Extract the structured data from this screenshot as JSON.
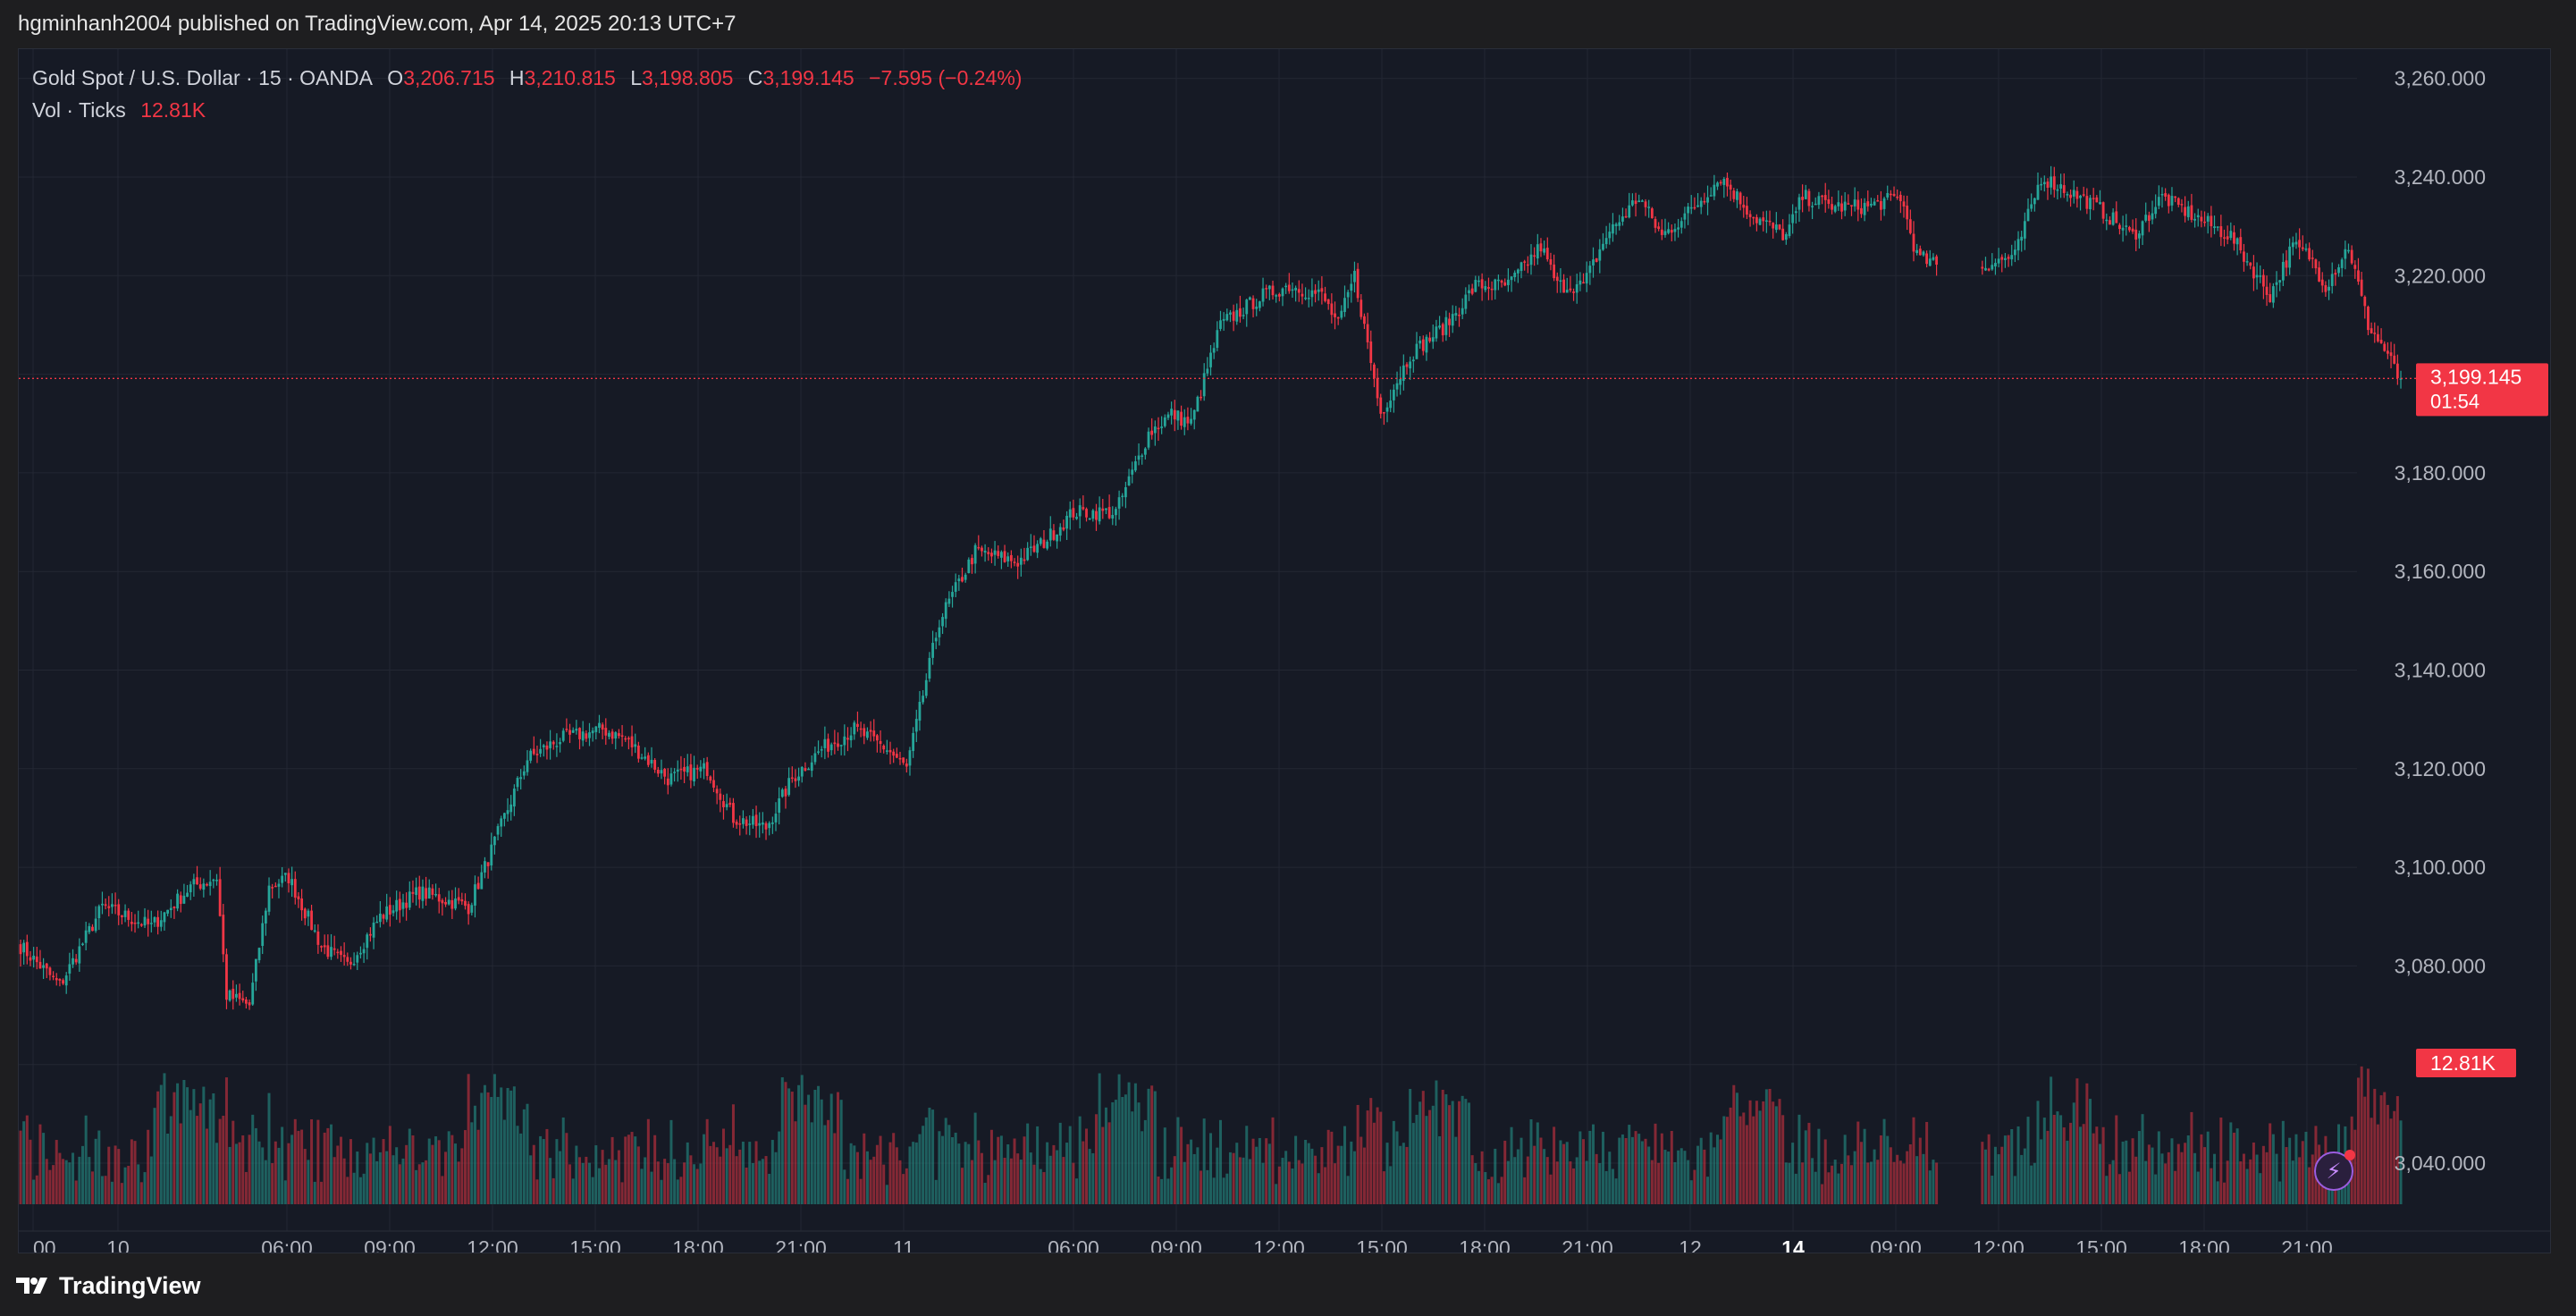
{
  "publisher_line": "hgminhanh2004 published on TradingView.com, Apr 14, 2025 20:13 UTC+7",
  "legend": {
    "symbol": "Gold Spot / U.S. Dollar · 15 · OANDA",
    "open_label": "O",
    "open": "3,206.715",
    "high_label": "H",
    "high": "3,210.815",
    "low_label": "L",
    "low": "3,198.805",
    "close_label": "C",
    "close": "3,199.145",
    "change": "−7.595 (−0.24%)",
    "vol_label": "Vol · Ticks",
    "vol_value": "12.81K"
  },
  "footer": {
    "brand": "TradingView"
  },
  "icons": [
    "tradingview-logo-icon",
    "lightning-icon"
  ],
  "colors": {
    "up": "#26a69a",
    "down": "#f23645",
    "background": "#161a25",
    "grid": "#232733"
  },
  "chart_data": {
    "type": "candlestick",
    "symbol": "Gold Spot / U.S. Dollar",
    "interval": "15",
    "price_axis_labels": [
      "3,260.000",
      "3,240.000",
      "3,220.000",
      "3,180.000",
      "3,160.000",
      "3,140.000",
      "3,120.000",
      "3,100.000",
      "3,080.000",
      "3,040.000"
    ],
    "ylim": [
      3031,
      3265
    ],
    "time_axis_labels": [
      "00",
      "10",
      "06:00",
      "09:00",
      "12:00",
      "15:00",
      "18:00",
      "21:00",
      "11",
      "06:00",
      "09:00",
      "12:00",
      "15:00",
      "18:00",
      "21:00",
      "12",
      "14",
      "09:00",
      "12:00",
      "15:00",
      "18:00",
      "21:00"
    ],
    "last_price": "3,199.145",
    "last_price_value": 3199.145,
    "countdown": "01:54",
    "volume_last_label": "12.81K",
    "waypoints": [
      [
        0,
        3084
      ],
      [
        12,
        3076
      ],
      [
        25,
        3092
      ],
      [
        40,
        3088
      ],
      [
        52,
        3096
      ],
      [
        60,
        3098
      ],
      [
        63,
        3074
      ],
      [
        70,
        3072
      ],
      [
        76,
        3096
      ],
      [
        82,
        3098
      ],
      [
        92,
        3084
      ],
      [
        100,
        3080
      ],
      [
        110,
        3090
      ],
      [
        122,
        3095
      ],
      [
        137,
        3092
      ],
      [
        142,
        3100
      ],
      [
        155,
        3122
      ],
      [
        165,
        3126
      ],
      [
        178,
        3128
      ],
      [
        185,
        3126
      ],
      [
        198,
        3118
      ],
      [
        210,
        3120
      ],
      [
        218,
        3110
      ],
      [
        228,
        3108
      ],
      [
        236,
        3118
      ],
      [
        245,
        3124
      ],
      [
        255,
        3128
      ],
      [
        265,
        3124
      ],
      [
        271,
        3120
      ],
      [
        281,
        3150
      ],
      [
        292,
        3164
      ],
      [
        305,
        3162
      ],
      [
        313,
        3166
      ],
      [
        322,
        3172
      ],
      [
        335,
        3172
      ],
      [
        345,
        3188
      ],
      [
        352,
        3192
      ],
      [
        358,
        3190
      ],
      [
        367,
        3210
      ],
      [
        380,
        3216
      ],
      [
        388,
        3218
      ],
      [
        398,
        3216
      ],
      [
        403,
        3210
      ],
      [
        408,
        3220
      ],
      [
        416,
        3192
      ],
      [
        425,
        3204
      ],
      [
        436,
        3210
      ],
      [
        445,
        3218
      ],
      [
        455,
        3218
      ],
      [
        465,
        3226
      ],
      [
        470,
        3218
      ],
      [
        478,
        3218
      ],
      [
        485,
        3228
      ],
      [
        495,
        3236
      ],
      [
        502,
        3228
      ],
      [
        512,
        3234
      ],
      [
        520,
        3240
      ],
      [
        530,
        3232
      ],
      [
        540,
        3228
      ],
      [
        545,
        3236
      ],
      [
        555,
        3234
      ],
      [
        565,
        3234
      ],
      [
        575,
        3236
      ],
      [
        580,
        3224
      ],
      [
        592,
        3220
      ],
      [
        600,
        3222
      ],
      [
        610,
        3224
      ],
      [
        618,
        3240
      ],
      [
        624,
        3238
      ],
      [
        635,
        3234
      ],
      [
        646,
        3228
      ],
      [
        655,
        3236
      ],
      [
        665,
        3232
      ],
      [
        676,
        3228
      ],
      [
        682,
        3222
      ],
      [
        688,
        3216
      ],
      [
        695,
        3226
      ],
      [
        700,
        3224
      ],
      [
        705,
        3218
      ],
      [
        712,
        3226
      ],
      [
        718,
        3210
      ],
      [
        724,
        3204
      ],
      [
        728,
        3198
      ]
    ],
    "series": [
      {
        "name": "Gold Spot / U.S. Dollar",
        "kind": "ohlc-15m-candles"
      },
      {
        "name": "Vol · Ticks",
        "kind": "volume-bars"
      }
    ]
  }
}
